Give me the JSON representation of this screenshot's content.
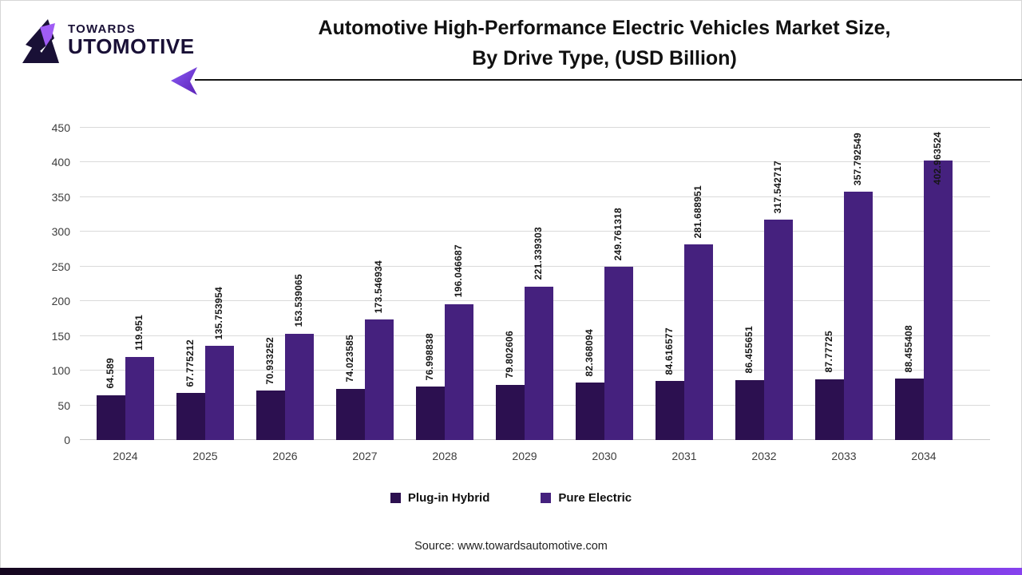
{
  "header": {
    "logo": {
      "line1": "TOWARDS",
      "line2": "UTOMOTIVE"
    },
    "title_line1": "Automotive High-Performance Electric Vehicles Market Size,",
    "title_line2": "By Drive Type, (USD Billion)"
  },
  "chart_data": {
    "type": "bar",
    "title": "Automotive High-Performance Electric Vehicles Market Size, By Drive Type, (USD Billion)",
    "categories": [
      "2024",
      "2025",
      "2026",
      "2027",
      "2028",
      "2029",
      "2030",
      "2031",
      "2032",
      "2033",
      "2034"
    ],
    "series": [
      {
        "name": "Plug-in Hybrid",
        "color": "#2c1050",
        "values": [
          64.589,
          67.775212,
          70.933252,
          74.023585,
          76.998838,
          79.802606,
          82.368094,
          84.616577,
          86.455651,
          87.77725,
          88.455408
        ]
      },
      {
        "name": "Pure Electric",
        "color": "#45217e",
        "values": [
          119.951,
          135.753954,
          153.539065,
          173.546934,
          196.046687,
          221.339303,
          249.761318,
          281.688951,
          317.542717,
          357.792549,
          402.963524
        ]
      }
    ],
    "xlabel": "",
    "ylabel": "",
    "ylim": [
      0,
      450
    ],
    "ytick_step": 50,
    "grid": true,
    "legend_position": "bottom",
    "value_labels": "rotated-90"
  },
  "footer": {
    "source": "Source: www.towardsautomotive.com"
  }
}
